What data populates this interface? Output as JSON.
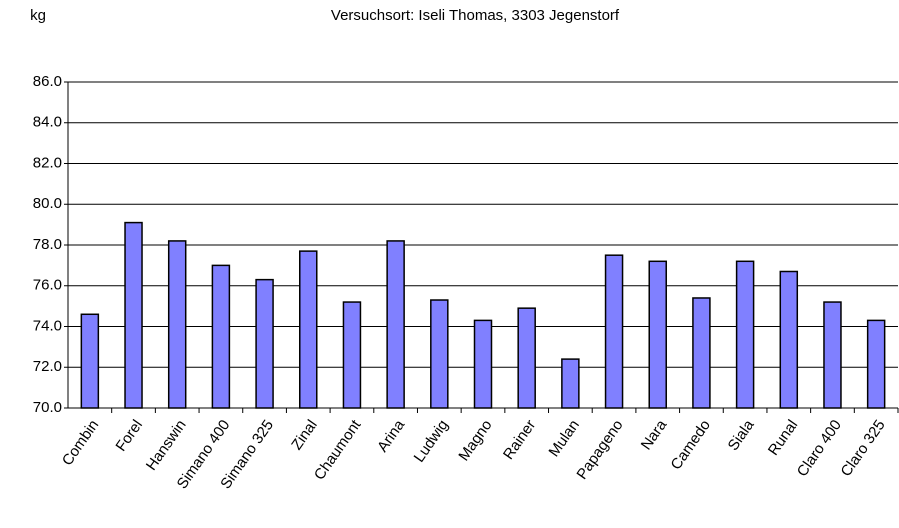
{
  "chart_data": {
    "type": "bar",
    "subtitle": "Versuchsort: Iseli Thomas, 3303 Jegenstorf",
    "y_label": "kg",
    "categories": [
      "Combin",
      "Forel",
      "Hanswin",
      "Simano 400",
      "Simano 325",
      "Zinal",
      "Chaumont",
      "Arina",
      "Ludwig",
      "Magno",
      "Rainer",
      "Mulan",
      "Papageno",
      "Nara",
      "Camedo",
      "Siala",
      "Runal",
      "Claro 400",
      "Claro 325"
    ],
    "values": [
      74.6,
      79.1,
      78.2,
      77.0,
      76.3,
      77.7,
      75.2,
      78.2,
      75.3,
      74.3,
      74.9,
      72.4,
      77.5,
      77.2,
      75.4,
      77.2,
      76.7,
      75.2,
      74.3
    ],
    "color": "#8080ff",
    "ylim": [
      70,
      86
    ],
    "yticks": [
      {
        "value": 70,
        "label": "70.0"
      },
      {
        "value": 72,
        "label": "72.0"
      },
      {
        "value": 74,
        "label": "74.0"
      },
      {
        "value": 76,
        "label": "76.0"
      },
      {
        "value": 78,
        "label": "78.0"
      },
      {
        "value": 80,
        "label": "80.0"
      },
      {
        "value": 82,
        "label": "82.0"
      },
      {
        "value": 84,
        "label": "84.0"
      },
      {
        "value": 86,
        "label": "86.0"
      }
    ],
    "grid": true
  }
}
